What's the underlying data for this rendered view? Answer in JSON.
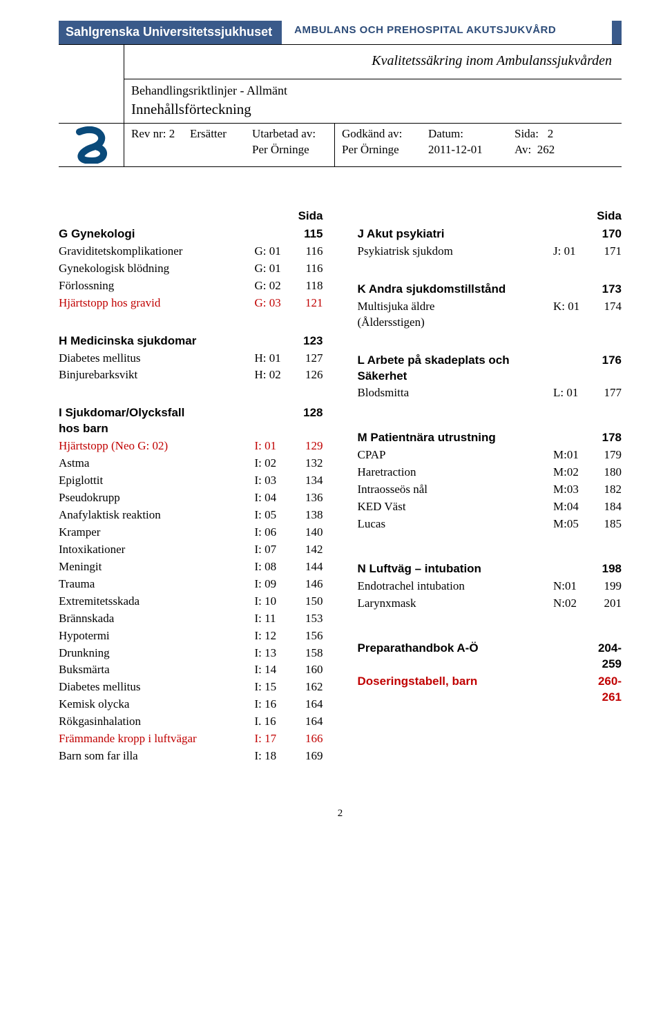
{
  "banner": {
    "org_left": "Sahlgrenska Universitetssjukhuset",
    "org_right": "AMBULANS OCH PREHOSPITAL AKUTSJUKVÅRD"
  },
  "header": {
    "qa_title": "Kvalitetssäkring inom Ambulanssjukvården",
    "doc_title1": "Behandlingsriktlinjer - Allmänt",
    "doc_title2": "Innehållsförteckning"
  },
  "meta": {
    "rev_lbl": "Rev nr: 2",
    "ersatter": "Ersätter",
    "utarbetad_lbl": "Utarbetad av:",
    "utarbetad_val": "Per Örninge",
    "godkand_lbl": "Godkänd av:",
    "godkand_val": "Per Örninge",
    "datum_lbl": "Datum:",
    "datum_val": "2011-12-01",
    "sida_lbl": "Sida:",
    "sida_num": "2",
    "av_lbl": "Av:",
    "av_num": "262"
  },
  "sida_label": "Sida",
  "left_sections": [
    {
      "type": "hdr",
      "name": "G  Gynekologi",
      "page": "115"
    },
    {
      "name": "Graviditetskomplikationer",
      "code": "G: 01",
      "page": "116"
    },
    {
      "name": "Gynekologisk blödning",
      "code": "G: 01",
      "page": "116"
    },
    {
      "name": "Förlossning",
      "code": "G: 02",
      "page": "118"
    },
    {
      "name": "Hjärtstopp hos gravid",
      "code": "G: 03",
      "page": "121",
      "red": true
    },
    {
      "type": "spacer"
    },
    {
      "type": "hdr",
      "name": "H  Medicinska sjukdomar",
      "page": "123"
    },
    {
      "name": "Diabetes mellitus",
      "code": "H: 01",
      "page": "127"
    },
    {
      "name": "Binjurebarksvikt",
      "code": "H: 02",
      "page": "126"
    },
    {
      "type": "spacer"
    },
    {
      "type": "hdr",
      "name": "I   Sjukdomar/Olycksfall\n     hos barn",
      "page": "128"
    },
    {
      "name": "Hjärtstopp (Neo G: 02)",
      "code": "I: 01",
      "page": "129",
      "red": true
    },
    {
      "name": "Astma",
      "code": "I: 02",
      "page": "132"
    },
    {
      "name": "Epiglottit",
      "code": "I: 03",
      "page": "134"
    },
    {
      "name": "Pseudokrupp",
      "code": "I: 04",
      "page": "136"
    },
    {
      "name": "Anafylaktisk reaktion",
      "code": "I: 05",
      "page": "138"
    },
    {
      "name": "Kramper",
      "code": "I: 06",
      "page": "140"
    },
    {
      "name": "Intoxikationer",
      "code": "I: 07",
      "page": "142"
    },
    {
      "name": "Meningit",
      "code": "I: 08",
      "page": "144"
    },
    {
      "name": "Trauma",
      "code": "I: 09",
      "page": "146"
    },
    {
      "name": "Extremitetsskada",
      "code": "I: 10",
      "page": "150"
    },
    {
      "name": "Brännskada",
      "code": "I: 11",
      "page": "153"
    },
    {
      "name": "Hypotermi",
      "code": "I: 12",
      "page": "156"
    },
    {
      "name": "Drunkning",
      "code": "I: 13",
      "page": "158"
    },
    {
      "name": "Buksmärta",
      "code": "I: 14",
      "page": "160"
    },
    {
      "name": "Diabetes mellitus",
      "code": "I: 15",
      "page": "162"
    },
    {
      "name": "Kemisk olycka",
      "code": "I: 16",
      "page": "164"
    },
    {
      "name": "Rökgasinhalation",
      "code": "I. 16",
      "page": "164"
    },
    {
      "name": "Främmande kropp i luftvägar",
      "code": "I: 17",
      "page": "166",
      "red": true
    },
    {
      "name": "Barn som far illa",
      "code": "I: 18",
      "page": "169"
    }
  ],
  "right_sections": [
    {
      "type": "hdr",
      "name": "J  Akut psykiatri",
      "page": "170"
    },
    {
      "name": "Psykiatrisk sjukdom",
      "code": "J: 01",
      "page": "171"
    },
    {
      "type": "spacer"
    },
    {
      "type": "hdr",
      "name": "K  Andra sjukdomstillstånd",
      "page": "173"
    },
    {
      "name": "Multisjuka äldre\n(Åldersstigen)",
      "code": "K: 01",
      "page": "174"
    },
    {
      "type": "spacer"
    },
    {
      "type": "hdr",
      "name": "L  Arbete på skadeplats och\n     Säkerhet",
      "page": "176"
    },
    {
      "name": "Blodsmitta",
      "code": "L: 01",
      "page": "177"
    },
    {
      "type": "spacer"
    },
    {
      "type": "mini-spacer"
    },
    {
      "type": "hdr",
      "name": "M  Patientnära utrustning",
      "page": "178"
    },
    {
      "name": "CPAP",
      "code": "M:01",
      "page": "179"
    },
    {
      "name": "Haretraction",
      "code": "M:02",
      "page": "180"
    },
    {
      "name": "Intraosseös nål",
      "code": "M:03",
      "page": "182"
    },
    {
      "name": "KED Väst",
      "code": "M:04",
      "page": "184"
    },
    {
      "name": "Lucas",
      "code": "M:05",
      "page": "185"
    },
    {
      "type": "spacer"
    },
    {
      "type": "mini-spacer"
    },
    {
      "type": "hdr",
      "name": "N  Luftväg – intubation",
      "page": "198"
    },
    {
      "name": "Endotrachel intubation",
      "code": "N:01",
      "page": "199"
    },
    {
      "name": "Larynxmask",
      "code": "N:02",
      "page": "201"
    },
    {
      "type": "spacer"
    },
    {
      "type": "mini-spacer"
    },
    {
      "type": "hdr",
      "name": "Preparathandbok A-Ö",
      "page": "204-259"
    },
    {
      "type": "hdr",
      "name": "Doseringstabell, barn",
      "page": "260-261",
      "red": true
    }
  ],
  "footer_page": "2"
}
